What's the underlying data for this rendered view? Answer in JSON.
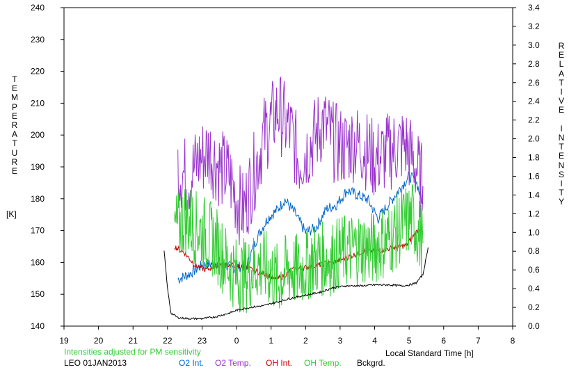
{
  "chart_data": {
    "type": "line",
    "left_axis": {
      "label": "TEMPERATURE",
      "unit": "[K]",
      "ylim": [
        140,
        240
      ],
      "ticks": [
        "240",
        "230",
        "220",
        "210",
        "200",
        "190",
        "180",
        "170",
        "160",
        "150",
        "140"
      ]
    },
    "right_axis": {
      "label": "RELATIVE INTENSITY",
      "ylim": [
        0.0,
        3.4
      ],
      "ticks": [
        "3.4",
        "3.2",
        "3.0",
        "2.8",
        "2.6",
        "2.4",
        "2.2",
        "2.0",
        "1.8",
        "1.6",
        "1.4",
        "1.2",
        "1.0",
        "0.8",
        "0.6",
        "0.4",
        "0.2",
        "0.0"
      ]
    },
    "x_axis": {
      "label": "Local Standard Time [h]",
      "ticks": [
        "19",
        "20",
        "21",
        "22",
        "23",
        "0",
        "1",
        "2",
        "3",
        "4",
        "5",
        "6",
        "7",
        "8"
      ]
    },
    "note": "Intensities adjusted for PM sensitivity",
    "station": "LEO 01JAN2013",
    "grid": false,
    "series": [
      {
        "name": "O2 Int.",
        "color": "#0066cc",
        "axis": "right",
        "x": [
          22.3,
          22.6,
          23.0,
          23.5,
          23.9,
          24.3,
          24.6,
          24.9,
          25.2,
          25.4,
          25.7,
          26.0,
          26.3,
          26.6,
          26.9,
          27.2,
          27.5,
          27.8,
          28.1,
          28.4,
          28.7,
          29.0,
          29.2,
          29.4
        ],
        "y": [
          0.5,
          0.55,
          0.65,
          0.68,
          0.62,
          0.65,
          0.95,
          1.15,
          1.25,
          1.35,
          1.2,
          1.0,
          1.05,
          1.25,
          1.3,
          1.45,
          1.4,
          1.35,
          1.15,
          1.3,
          1.45,
          1.6,
          1.55,
          1.3
        ]
      },
      {
        "name": "O2 Temp.",
        "color": "#9933cc",
        "axis": "left",
        "x": [
          22.3,
          22.6,
          22.9,
          23.2,
          23.5,
          23.8,
          24.0,
          24.2,
          24.5,
          24.8,
          25.0,
          25.2,
          25.4,
          25.6,
          25.8,
          26.2,
          26.5,
          26.8,
          27.1,
          27.4,
          27.7,
          28.0,
          28.3,
          28.6,
          28.9,
          29.2,
          29.4
        ],
        "y": [
          190,
          186,
          192,
          195,
          190,
          187,
          180,
          176,
          188,
          200,
          204,
          208,
          204,
          200,
          192,
          198,
          204,
          198,
          196,
          198,
          196,
          192,
          194,
          196,
          197,
          190,
          184
        ]
      },
      {
        "name": "OH Int.",
        "color": "#cc0000",
        "axis": "right",
        "x": [
          22.2,
          22.5,
          22.8,
          23.1,
          23.4,
          23.7,
          24.0,
          24.3,
          24.6,
          24.9,
          25.1,
          25.3,
          25.6,
          25.9,
          26.2,
          26.5,
          26.8,
          27.1,
          27.4,
          27.7,
          28.0,
          28.3,
          28.6,
          28.9,
          29.1,
          29.3,
          29.4
        ],
        "y": [
          0.85,
          0.78,
          0.65,
          0.6,
          0.64,
          0.66,
          0.64,
          0.62,
          0.58,
          0.55,
          0.5,
          0.52,
          0.6,
          0.62,
          0.64,
          0.66,
          0.68,
          0.72,
          0.76,
          0.8,
          0.8,
          0.82,
          0.84,
          0.86,
          0.95,
          1.05,
          1.0
        ]
      },
      {
        "name": "OH Temp.",
        "color": "#33cc33",
        "axis": "left",
        "x": [
          22.2,
          22.5,
          22.8,
          23.1,
          23.4,
          23.7,
          24.0,
          24.3,
          24.6,
          24.9,
          25.2,
          25.5,
          25.8,
          26.1,
          26.4,
          26.7,
          27.0,
          27.3,
          27.6,
          27.9,
          28.2,
          28.5,
          28.8,
          29.1,
          29.4
        ],
        "y": [
          170,
          174,
          171,
          169,
          166,
          160,
          156,
          156,
          159,
          158,
          154,
          158,
          157,
          160,
          161,
          161,
          163,
          164,
          165,
          164,
          166,
          168,
          172,
          174,
          166
        ]
      },
      {
        "name": "Bckgrd.",
        "color": "#000000",
        "axis": "right",
        "x": [
          21.9,
          22.0,
          22.1,
          22.3,
          22.6,
          23.0,
          23.4,
          23.8,
          24.0,
          24.4,
          24.8,
          25.2,
          25.6,
          26.0,
          26.4,
          26.8,
          27.2,
          27.6,
          28.0,
          28.4,
          28.8,
          29.0,
          29.2,
          29.4,
          29.55
        ],
        "y": [
          0.8,
          0.4,
          0.14,
          0.09,
          0.08,
          0.08,
          0.1,
          0.14,
          0.17,
          0.2,
          0.22,
          0.26,
          0.3,
          0.33,
          0.36,
          0.41,
          0.43,
          0.43,
          0.44,
          0.44,
          0.43,
          0.44,
          0.46,
          0.55,
          0.84
        ]
      }
    ]
  }
}
